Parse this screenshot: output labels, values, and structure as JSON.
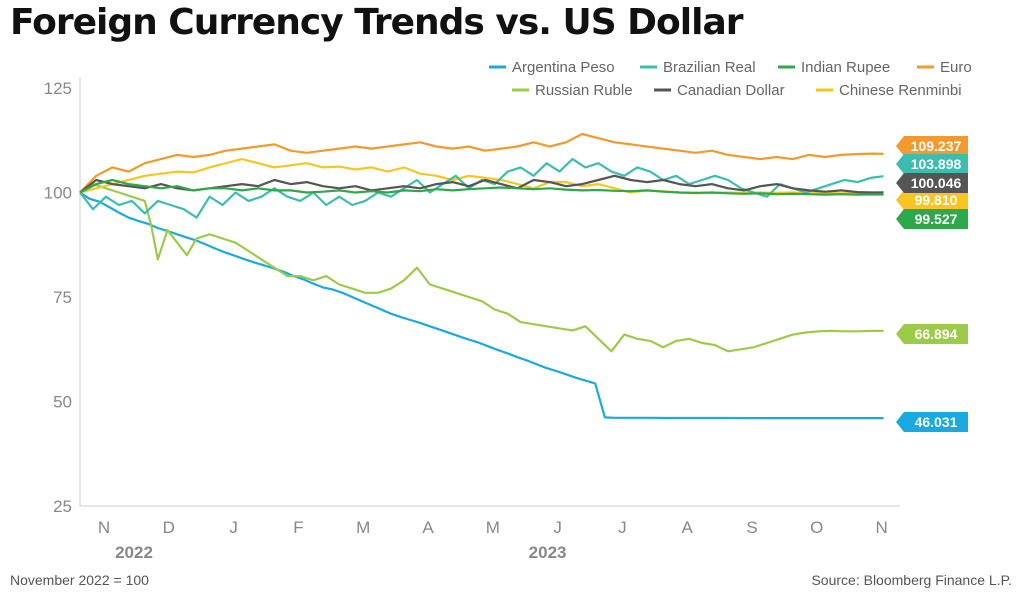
{
  "title": "Foreign Currency Trends vs. US Dollar",
  "footer": {
    "note": "November 2022 = 100",
    "source": "Source: Bloomberg Finance L.P."
  },
  "colors": {
    "argentina": "#1aa9e0",
    "brazil": "#3bbdb0",
    "india": "#2ea84a",
    "euro": "#f39a2e",
    "russia": "#9ccb4a",
    "canada": "#555555",
    "china": "#f7c623",
    "axis": "#cccccc",
    "tick": "#888888"
  },
  "chart_data": {
    "type": "line",
    "title": "Foreign Currency Trends vs. US Dollar",
    "xlabel": "",
    "ylabel": "",
    "ylim": [
      25,
      125
    ],
    "yticks": [
      25,
      50,
      75,
      100,
      125
    ],
    "x_months": [
      "N",
      "D",
      "J",
      "F",
      "M",
      "A",
      "M",
      "J",
      "J",
      "A",
      "S",
      "O",
      "N"
    ],
    "x_years": [
      "2022",
      "2023"
    ],
    "x_range": [
      0,
      12.5
    ],
    "legend": [
      "Argentina Peso",
      "Brazilian Real",
      "Indian Rupee",
      "Euro",
      "Russian Ruble",
      "Canadian Dollar",
      "Chinese Renminbi"
    ],
    "series": [
      {
        "key": "argentina",
        "name": "Argentina Peso",
        "end_label": "46.031",
        "x": [
          0,
          0.15,
          0.3,
          0.45,
          0.6,
          0.75,
          0.9,
          1.05,
          1.2,
          1.35,
          1.5,
          1.65,
          1.8,
          1.95,
          2.1,
          2.25,
          2.4,
          2.55,
          2.7,
          2.85,
          3.0,
          3.15,
          3.3,
          3.45,
          3.6,
          3.75,
          3.9,
          4.05,
          4.2,
          4.35,
          4.5,
          4.65,
          4.8,
          4.95,
          5.1,
          5.25,
          5.4,
          5.55,
          5.7,
          5.85,
          6.0,
          6.15,
          6.3,
          6.45,
          6.6,
          6.75,
          6.9,
          7.05,
          7.2,
          7.35,
          7.5,
          7.65,
          7.8,
          7.95,
          8.1,
          8.25,
          8.4,
          8.55,
          8.7,
          8.85,
          9.0,
          9.5,
          10.0,
          10.5,
          11.0,
          11.5,
          12.0,
          12.4
        ],
        "values": [
          100,
          98.5,
          97.8,
          96.5,
          95.2,
          94,
          93.2,
          92.5,
          91.5,
          90.8,
          90,
          89.2,
          88.5,
          87.5,
          86.5,
          85.6,
          84.8,
          84,
          83.2,
          82.5,
          81.8,
          81,
          80,
          79.2,
          78.2,
          77.3,
          76.8,
          76,
          75,
          74,
          73,
          72,
          71,
          70.2,
          69.5,
          68.8,
          68,
          67.2,
          66.4,
          65.6,
          64.8,
          64.1,
          63.2,
          62.3,
          61.5,
          60.6,
          59.8,
          58.9,
          58,
          57.3,
          56.5,
          55.7,
          55,
          54.3,
          46.2,
          46.1,
          46.1,
          46.1,
          46.1,
          46.1,
          46.05,
          46.05,
          46.05,
          46.04,
          46.03,
          46.03,
          46.03,
          46.031
        ]
      },
      {
        "key": "russia",
        "name": "Russian Ruble",
        "end_label": "66.894",
        "x": [
          0,
          0.2,
          0.4,
          0.6,
          0.8,
          1.0,
          1.1,
          1.2,
          1.35,
          1.5,
          1.65,
          1.8,
          2.0,
          2.2,
          2.4,
          2.6,
          2.8,
          3.0,
          3.2,
          3.4,
          3.6,
          3.8,
          4.0,
          4.2,
          4.4,
          4.6,
          4.8,
          5.0,
          5.2,
          5.4,
          5.6,
          5.8,
          6.0,
          6.2,
          6.4,
          6.6,
          6.8,
          7.0,
          7.2,
          7.4,
          7.6,
          7.8,
          8.0,
          8.2,
          8.4,
          8.6,
          8.8,
          9.0,
          9.2,
          9.4,
          9.6,
          9.8,
          10.0,
          10.2,
          10.4,
          10.6,
          10.8,
          11.0,
          11.2,
          11.4,
          11.6,
          11.8,
          12.0,
          12.2,
          12.4
        ],
        "values": [
          100,
          102,
          101,
          100,
          99,
          98,
          92,
          84,
          91,
          88,
          85,
          89,
          90,
          89,
          88,
          86,
          84,
          82,
          80,
          80,
          79,
          80,
          78,
          77,
          76,
          76,
          77,
          79,
          82,
          78,
          77,
          76,
          75,
          74,
          72,
          71,
          69,
          68.5,
          68,
          67.5,
          67,
          68,
          65,
          62,
          66,
          65,
          64.5,
          63,
          64.5,
          65,
          64,
          63.5,
          62,
          62.5,
          63,
          64,
          65,
          66,
          66.5,
          66.8,
          66.9,
          66.8,
          66.8,
          66.9,
          66.894
        ]
      },
      {
        "key": "euro",
        "name": "Euro",
        "end_label": "109.237",
        "x": [
          0,
          0.25,
          0.5,
          0.75,
          1.0,
          1.25,
          1.5,
          1.75,
          2.0,
          2.25,
          2.5,
          2.75,
          3.0,
          3.25,
          3.5,
          3.75,
          4.0,
          4.25,
          4.5,
          4.75,
          5.0,
          5.25,
          5.5,
          5.75,
          6.0,
          6.25,
          6.5,
          6.75,
          7.0,
          7.25,
          7.5,
          7.75,
          8.0,
          8.25,
          8.5,
          8.75,
          9.0,
          9.25,
          9.5,
          9.75,
          10.0,
          10.25,
          10.5,
          10.75,
          11.0,
          11.25,
          11.5,
          11.75,
          12.0,
          12.25,
          12.4
        ],
        "values": [
          100,
          104,
          106,
          105,
          107,
          108,
          109,
          108.5,
          109,
          110,
          110.5,
          111,
          111.5,
          110,
          109.5,
          110,
          110.5,
          111,
          110.5,
          111,
          111.5,
          112,
          111,
          110.5,
          111,
          110,
          110.5,
          111,
          112,
          111,
          112,
          114,
          113,
          112,
          111.5,
          111,
          110.5,
          110,
          109.5,
          110,
          109,
          108.5,
          108,
          108.5,
          108,
          109,
          108.5,
          109,
          109.2,
          109.3,
          109.237
        ]
      },
      {
        "key": "china",
        "name": "Chinese Renminbi",
        "end_label": "99.810",
        "x": [
          0,
          0.25,
          0.5,
          0.75,
          1.0,
          1.25,
          1.5,
          1.75,
          2.0,
          2.25,
          2.5,
          2.75,
          3.0,
          3.25,
          3.5,
          3.75,
          4.0,
          4.25,
          4.5,
          4.75,
          5.0,
          5.25,
          5.5,
          5.75,
          6.0,
          6.25,
          6.5,
          6.75,
          7.0,
          7.25,
          7.5,
          7.75,
          8.0,
          8.25,
          8.5,
          8.75,
          9.0,
          9.25,
          9.5,
          9.75,
          10.0,
          10.25,
          10.5,
          10.75,
          11.0,
          11.25,
          11.5,
          11.75,
          12.0,
          12.25,
          12.4
        ],
        "values": [
          100,
          101,
          102,
          103,
          104,
          104.5,
          105,
          104.8,
          106,
          107,
          108,
          107,
          106,
          106.5,
          107,
          106,
          106.2,
          105.5,
          106,
          105,
          106,
          104.5,
          104,
          103,
          104,
          103.5,
          103,
          102,
          101,
          102.5,
          102.5,
          101.5,
          102,
          101,
          100,
          100.5,
          100.3,
          100,
          99.8,
          99.9,
          100,
          99.9,
          100,
          99.9,
          100,
          99.8,
          99.9,
          99.8,
          99.9,
          99.8,
          99.81
        ]
      },
      {
        "key": "brazil",
        "name": "Brazilian Real",
        "end_label": "103.898",
        "x": [
          0,
          0.2,
          0.4,
          0.6,
          0.8,
          1.0,
          1.2,
          1.4,
          1.6,
          1.8,
          2.0,
          2.2,
          2.4,
          2.6,
          2.8,
          3.0,
          3.2,
          3.4,
          3.6,
          3.8,
          4.0,
          4.2,
          4.4,
          4.6,
          4.8,
          5.0,
          5.2,
          5.4,
          5.6,
          5.8,
          6.0,
          6.2,
          6.4,
          6.6,
          6.8,
          7.0,
          7.2,
          7.4,
          7.6,
          7.8,
          8.0,
          8.2,
          8.4,
          8.6,
          8.8,
          9.0,
          9.2,
          9.4,
          9.6,
          9.8,
          10.0,
          10.2,
          10.4,
          10.6,
          10.8,
          11.0,
          11.2,
          11.4,
          11.6,
          11.8,
          12.0,
          12.2,
          12.4
        ],
        "values": [
          100,
          96,
          99,
          97,
          98,
          95,
          98,
          97,
          96,
          94,
          99,
          97,
          100,
          98,
          99,
          101,
          99,
          98,
          100,
          97,
          99,
          97,
          98,
          100,
          99,
          101,
          103,
          100,
          102,
          104,
          101,
          103,
          102,
          105,
          106,
          104,
          107,
          105,
          108,
          106,
          107,
          105,
          104,
          106,
          105,
          103,
          104,
          102,
          103,
          104,
          103,
          101,
          100,
          99,
          102,
          101,
          100,
          101,
          102,
          103,
          102.5,
          103.5,
          103.898
        ]
      },
      {
        "key": "canada",
        "name": "Canadian Dollar",
        "end_label": "100.046",
        "x": [
          0,
          0.25,
          0.5,
          0.75,
          1.0,
          1.25,
          1.5,
          1.75,
          2.0,
          2.25,
          2.5,
          2.75,
          3.0,
          3.25,
          3.5,
          3.75,
          4.0,
          4.25,
          4.5,
          4.75,
          5.0,
          5.25,
          5.5,
          5.75,
          6.0,
          6.25,
          6.5,
          6.75,
          7.0,
          7.25,
          7.5,
          7.75,
          8.0,
          8.25,
          8.5,
          8.75,
          9.0,
          9.25,
          9.5,
          9.75,
          10.0,
          10.25,
          10.5,
          10.75,
          11.0,
          11.25,
          11.5,
          11.75,
          12.0,
          12.25,
          12.4
        ],
        "values": [
          100,
          103,
          102,
          101.5,
          101,
          102,
          101,
          100.5,
          101,
          101.5,
          102,
          101.5,
          103,
          102,
          102.5,
          101.5,
          101,
          101.5,
          100.5,
          101,
          101.5,
          101,
          102,
          102.5,
          101.5,
          103,
          102,
          101,
          103,
          102.5,
          101.5,
          102,
          103,
          104,
          103,
          102.5,
          103,
          102,
          101.5,
          102,
          101,
          100.5,
          101.5,
          102,
          101,
          100.5,
          100.2,
          100.5,
          100.1,
          100,
          100.046
        ]
      },
      {
        "key": "india",
        "name": "Indian Rupee",
        "end_label": "99.527",
        "x": [
          0,
          0.25,
          0.5,
          0.75,
          1.0,
          1.25,
          1.5,
          1.75,
          2.0,
          2.25,
          2.5,
          2.75,
          3.0,
          3.25,
          3.5,
          3.75,
          4.0,
          4.25,
          4.5,
          4.75,
          5.0,
          5.25,
          5.5,
          5.75,
          6.0,
          6.25,
          6.5,
          6.75,
          7.0,
          7.25,
          7.5,
          7.75,
          8.0,
          8.25,
          8.5,
          8.75,
          9.0,
          9.25,
          9.5,
          9.75,
          10.0,
          10.25,
          10.5,
          10.75,
          11.0,
          11.25,
          11.5,
          11.75,
          12.0,
          12.25,
          12.4
        ],
        "values": [
          100,
          102,
          103,
          102,
          101.5,
          101,
          101.5,
          100.5,
          101,
          101,
          100.5,
          101,
          100.5,
          100.5,
          100,
          100.2,
          100.5,
          100,
          100.3,
          100,
          100.5,
          100.3,
          100.8,
          100.5,
          100.8,
          101,
          101.2,
          101,
          100.8,
          101,
          100.7,
          100.5,
          100.6,
          100.4,
          100.3,
          100.5,
          100.2,
          100,
          99.9,
          100,
          99.8,
          99.7,
          99.8,
          99.6,
          99.7,
          99.6,
          99.5,
          99.6,
          99.5,
          99.55,
          99.527
        ]
      }
    ]
  }
}
